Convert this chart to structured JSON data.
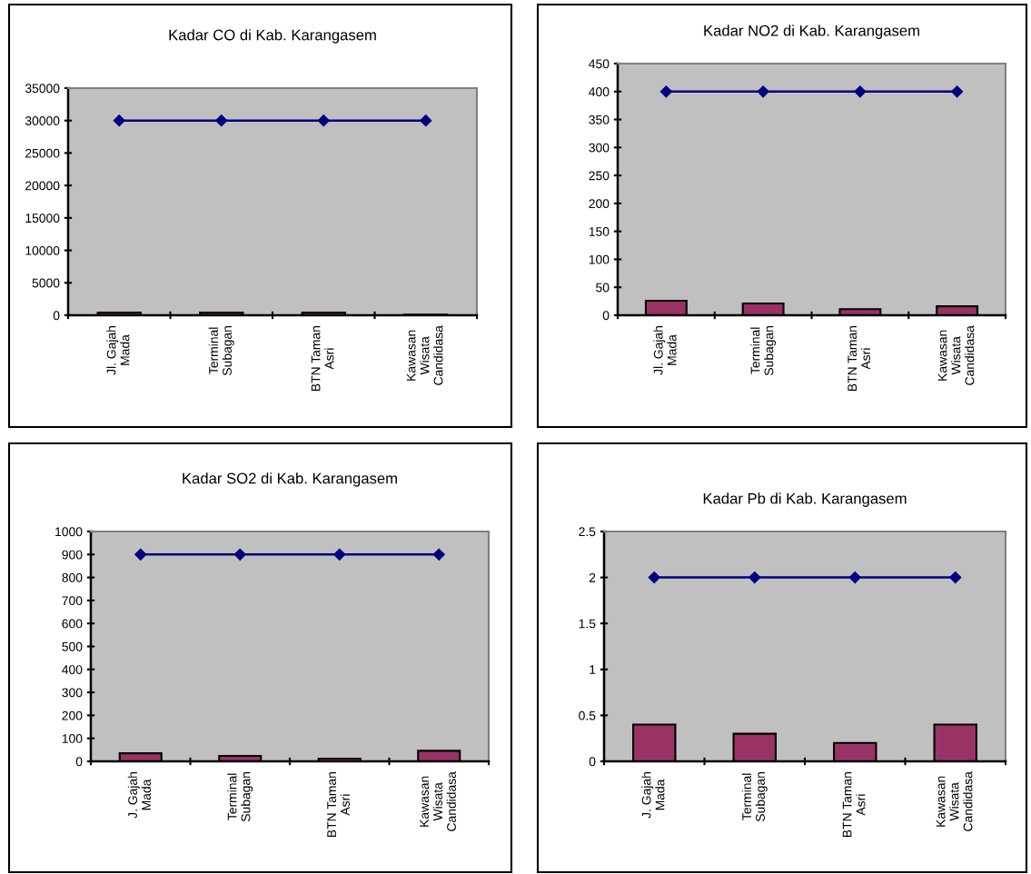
{
  "chart_data": [
    {
      "type": "bar",
      "title": "Kadar CO di Kab. Karangasem",
      "categories": [
        "Jl. Gajah\nMada",
        "Terminal\nSubagan",
        "BTN Taman\nAsri",
        "Kawasan\nWisata\nCandidasa"
      ],
      "series": [
        {
          "color": "#993366",
          "values": [
            400,
            400,
            400,
            100
          ]
        },
        {
          "type": "line",
          "color": "#000080",
          "values": [
            30000,
            30000,
            30000,
            30000
          ]
        }
      ],
      "ylim": [
        0,
        35000
      ],
      "yticks": [
        0,
        5000,
        10000,
        15000,
        20000,
        25000,
        30000,
        35000
      ],
      "marker": "diamond",
      "grid": false,
      "legend": false
    },
    {
      "type": "bar",
      "title": "Kadar NO2 di Kab. Karangasem",
      "categories": [
        "Jl. Gajah\nMada",
        "Terminal\nSubagan",
        "BTN Taman\nAsri",
        "Kawasan\nWisata\nCandidasa"
      ],
      "series": [
        {
          "color": "#993366",
          "values": [
            26,
            21,
            11,
            16
          ]
        },
        {
          "type": "line",
          "color": "#000080",
          "values": [
            400,
            400,
            400,
            400
          ]
        }
      ],
      "ylim": [
        0,
        450
      ],
      "yticks": [
        0,
        50,
        100,
        150,
        200,
        250,
        300,
        350,
        400,
        450
      ],
      "marker": "diamond",
      "grid": false,
      "legend": false
    },
    {
      "type": "bar",
      "title": "Kadar SO2 di Kab. Karangasem",
      "categories": [
        "J. Gajah\nMada",
        "Terminal\nSubagan",
        "BTN Taman\nAsri",
        "Kawasan\nWisata\nCandidasa"
      ],
      "series": [
        {
          "color": "#993366",
          "values": [
            35,
            24,
            12,
            46
          ]
        },
        {
          "type": "line",
          "color": "#000080",
          "values": [
            900,
            900,
            900,
            900
          ]
        }
      ],
      "ylim": [
        0,
        1000
      ],
      "yticks": [
        0,
        100,
        200,
        300,
        400,
        500,
        600,
        700,
        800,
        900,
        1000
      ],
      "marker": "diamond",
      "grid": false,
      "legend": false
    },
    {
      "type": "bar",
      "title": "Kadar Pb di Kab. Karangasem",
      "categories": [
        "J. Gajah\nMada",
        "Terminal\nSubagan",
        "BTN Taman\nAsri",
        "Kawasan\nWisata\nCandidasa"
      ],
      "series": [
        {
          "color": "#993366",
          "values": [
            0.4,
            0.3,
            0.2,
            0.4
          ]
        },
        {
          "type": "line",
          "color": "#000080",
          "values": [
            2,
            2,
            2,
            2
          ]
        }
      ],
      "ylim": [
        0,
        2.5
      ],
      "yticks": [
        0,
        0.5,
        1,
        1.5,
        2,
        2.5
      ],
      "marker": "diamond",
      "grid": false,
      "legend": false
    }
  ]
}
